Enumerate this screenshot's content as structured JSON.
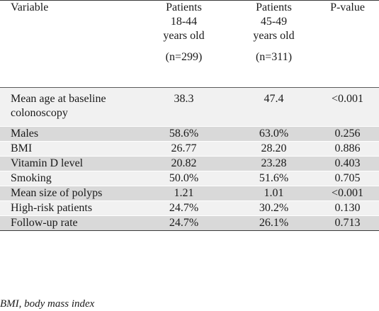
{
  "table": {
    "headers": {
      "variable": "Variable",
      "group1": {
        "line1": "Patients",
        "line2": "18-44",
        "line3": "years old",
        "n": "(n=299)"
      },
      "group2": {
        "line1": "Patients",
        "line2": "45-49",
        "line3": "years old",
        "n": "(n=311)"
      },
      "pvalue": "P-value"
    },
    "rows": [
      {
        "variable": "Mean age at baseline colonoscopy",
        "g1": "38.3",
        "g2": "47.4",
        "p": "<0.001"
      },
      {
        "variable": "Males",
        "g1": "58.6%",
        "g2": "63.0%",
        "p": "0.256"
      },
      {
        "variable": "BMI",
        "g1": "26.77",
        "g2": "28.20",
        "p": "0.886"
      },
      {
        "variable": "Vitamin D level",
        "g1": "20.82",
        "g2": "23.28",
        "p": "0.403"
      },
      {
        "variable": "Smoking",
        "g1": "50.0%",
        "g2": "51.6%",
        "p": "0.705"
      },
      {
        "variable": "Mean size of polyps",
        "g1": "1.21",
        "g2": "1.01",
        "p": "<0.001"
      },
      {
        "variable": "High-risk patients",
        "g1": "24.7%",
        "g2": "30.2%",
        "p": "0.130"
      },
      {
        "variable": "Follow-up rate",
        "g1": "24.7%",
        "g2": "26.1%",
        "p": "0.713"
      }
    ]
  },
  "footnote": "BMI, body mass index"
}
